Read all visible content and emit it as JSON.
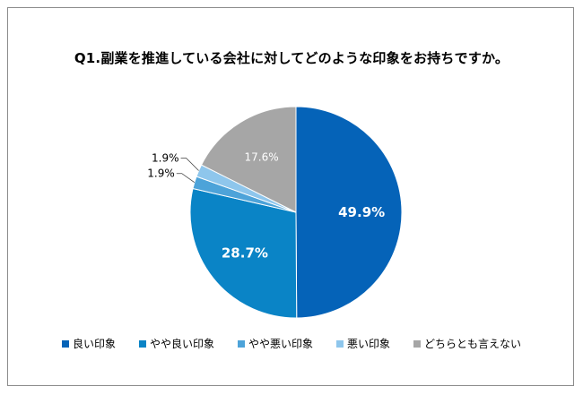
{
  "chart_data": {
    "type": "pie",
    "title": "Q1.副業を推進している会社に対してどのような印象をお持ちですか。",
    "slices": [
      {
        "name": "良い印象",
        "value": 49.9,
        "label": "49.9%",
        "color": "#0563b8"
      },
      {
        "name": "やや良い印象",
        "value": 28.7,
        "label": "28.7%",
        "color": "#0a84c6"
      },
      {
        "name": "やや悪い印象",
        "value": 1.9,
        "label": "1.9%",
        "color": "#4da3d9"
      },
      {
        "name": "悪い印象",
        "value": 1.9,
        "label": "1.9%",
        "color": "#8ec6ec"
      },
      {
        "name": "どちらとも言えない",
        "value": 17.6,
        "label": "17.6%",
        "color": "#a6a6a6"
      }
    ],
    "legend_position": "bottom"
  }
}
